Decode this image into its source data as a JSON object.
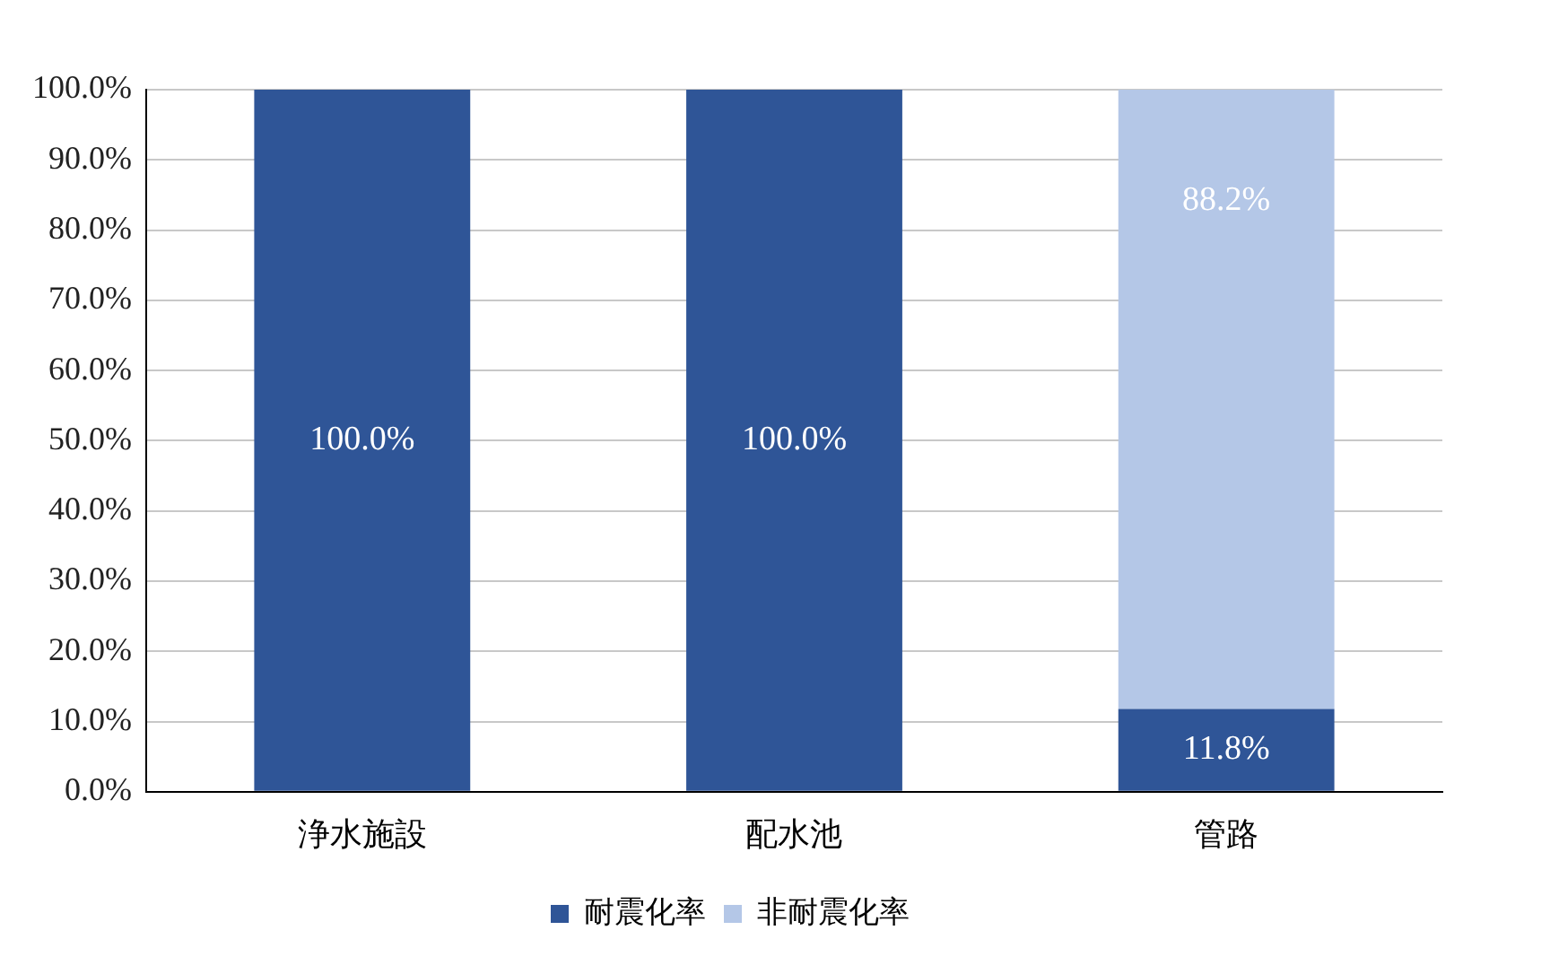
{
  "chart_data": {
    "type": "bar",
    "stacked": true,
    "categories": [
      "浄水施設",
      "配水池",
      "管路"
    ],
    "series": [
      {
        "name": "耐震化率",
        "color": "#2f5597",
        "values": [
          100,
          100,
          11.8
        ],
        "value_labels": [
          "100.0%",
          "100.0%",
          "11.8%"
        ]
      },
      {
        "name": "非耐震化率",
        "color": "#b4c7e7",
        "values": [
          0,
          0,
          88.2
        ],
        "value_labels": [
          null,
          null,
          "88.2%"
        ]
      }
    ],
    "ylim": [
      0,
      100
    ],
    "yticks": [
      {
        "value": 0,
        "label": "0.0%"
      },
      {
        "value": 10,
        "label": "10.0%"
      },
      {
        "value": 20,
        "label": "20.0%"
      },
      {
        "value": 30,
        "label": "30.0%"
      },
      {
        "value": 40,
        "label": "40.0%"
      },
      {
        "value": 50,
        "label": "50.0%"
      },
      {
        "value": 60,
        "label": "60.0%"
      },
      {
        "value": 70,
        "label": "70.0%"
      },
      {
        "value": 80,
        "label": "80.0%"
      },
      {
        "value": 90,
        "label": "90.0%"
      },
      {
        "value": 100,
        "label": "100.0%"
      }
    ],
    "grid": "y",
    "legend": "bottom"
  }
}
